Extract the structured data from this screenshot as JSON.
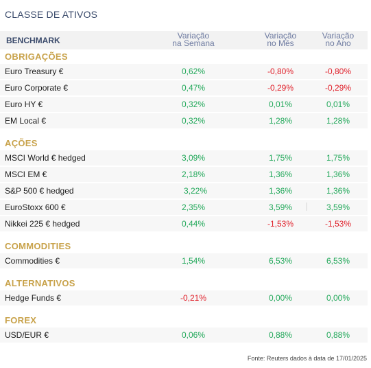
{
  "title": "CLASSE DE ATIVOS",
  "header": {
    "benchmark": "BENCHMARK",
    "col1_line1": "Variação",
    "col1_line2": "na Semana",
    "col2_line1": "Variação",
    "col2_line2": "no Mês",
    "col3_line1": "Variação",
    "col3_line2": "no Ano"
  },
  "sections": {
    "obrigacoes": "OBRIGAÇÕES",
    "acoes": "AÇÕES",
    "commodities": "COMMODITIES",
    "alternativos": "ALTERNATIVOS",
    "forex": "FOREX"
  },
  "rows": {
    "euro_treasury": {
      "name": "Euro Treasury €",
      "week": "0,62%",
      "month": "-0,80%",
      "year": "-0,80%"
    },
    "euro_corporate": {
      "name": "Euro Corporate €",
      "week": "0,47%",
      "month": "-0,29%",
      "year": "-0,29%"
    },
    "euro_hy": {
      "name": "Euro HY €",
      "week": "0,32%",
      "month": "0,01%",
      "year": "0,01%"
    },
    "em_local": {
      "name": "EM Local €",
      "week": "0,32%",
      "month": "1,28%",
      "year": "1,28%"
    },
    "msci_world": {
      "name": "MSCI World € hedged",
      "week": "3,09%",
      "month": "1,75%",
      "year": "1,75%"
    },
    "msci_em": {
      "name": "MSCI EM €",
      "week": "2,18%",
      "month": "1,36%",
      "year": "1,36%"
    },
    "sp500": {
      "name": "S&P 500 € hedged",
      "week": "3,22%",
      "month": "1,36%",
      "year": "1,36%"
    },
    "eurostoxx": {
      "name": "EuroStoxx 600 €",
      "week": "2,35%",
      "month": "3,59%",
      "year": "3,59%"
    },
    "nikkei": {
      "name": "Nikkei 225 € hedged",
      "week": "0,44%",
      "month": "-1,53%",
      "year": "-1,53%"
    },
    "commodities": {
      "name": "Commodities €",
      "week": "1,54%",
      "month": "6,53%",
      "year": "6,53%"
    },
    "hedge_funds": {
      "name": "Hedge Funds €",
      "week": "-0,21%",
      "month": "0,00%",
      "year": "0,00%"
    },
    "usd_eur": {
      "name": "USD/EUR €",
      "week": "0,06%",
      "month": "0,88%",
      "year": "0,88%"
    }
  },
  "source": "Fonte: Reuters dados à data de 17/01/2025",
  "colors": {
    "positive": "#22a85a",
    "negative": "#e0202a",
    "section": "#c8a24a",
    "header": "#3a4a6b"
  }
}
